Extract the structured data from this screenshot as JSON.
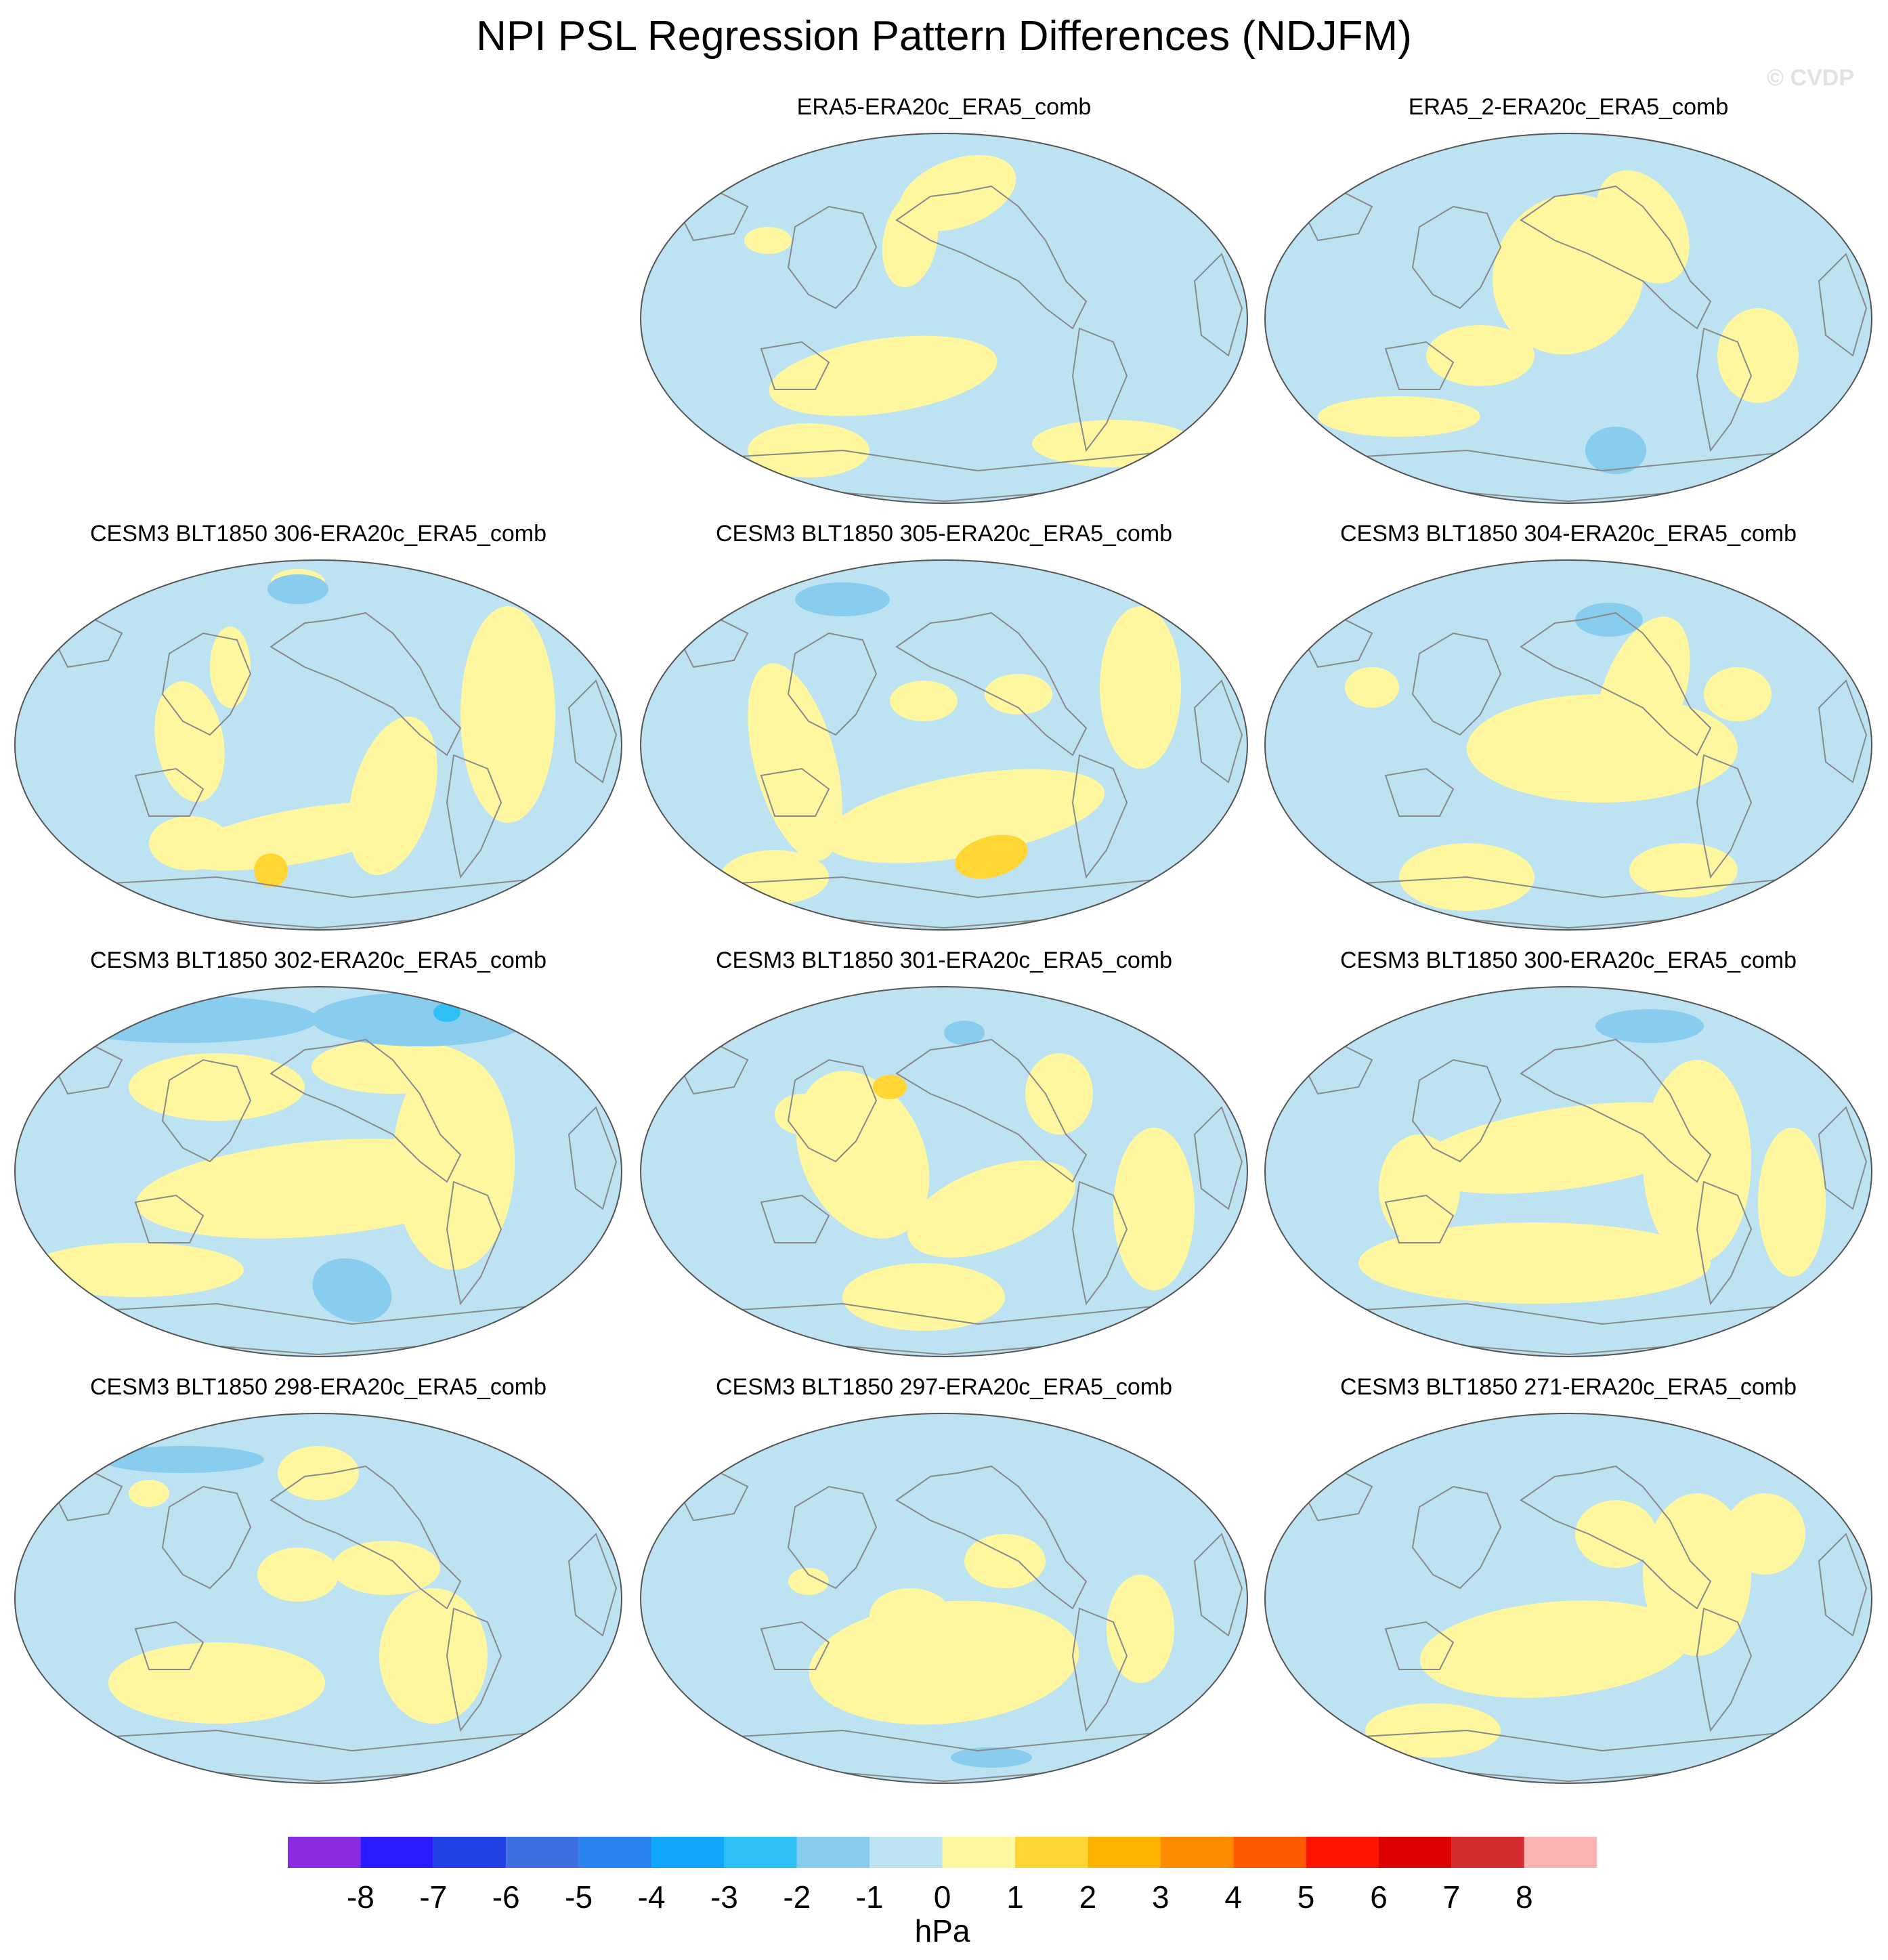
{
  "title": "NPI PSL Regression Pattern Differences (NDJFM)",
  "watermark": "© CVDP",
  "panels": [
    {
      "title": "ERA5-ERA20c_ERA5_comb"
    },
    {
      "title": "ERA5_2-ERA20c_ERA5_comb"
    },
    {
      "title": "CESM3 BLT1850 306-ERA20c_ERA5_comb"
    },
    {
      "title": "CESM3 BLT1850 305-ERA20c_ERA5_comb"
    },
    {
      "title": "CESM3 BLT1850 304-ERA20c_ERA5_comb"
    },
    {
      "title": "CESM3 BLT1850 302-ERA20c_ERA5_comb"
    },
    {
      "title": "CESM3 BLT1850 301-ERA20c_ERA5_comb"
    },
    {
      "title": "CESM3 BLT1850 300-ERA20c_ERA5_comb"
    },
    {
      "title": "CESM3 BLT1850 298-ERA20c_ERA5_comb"
    },
    {
      "title": "CESM3 BLT1850 297-ERA20c_ERA5_comb"
    },
    {
      "title": "CESM3 BLT1850 271-ERA20c_ERA5_comb"
    }
  ],
  "colorbar": {
    "unit": "hPa",
    "labels": [
      "-8",
      "-7",
      "-6",
      "-5",
      "-4",
      "-3",
      "-2",
      "-1",
      "0",
      "1",
      "2",
      "3",
      "4",
      "5",
      "6",
      "7",
      "8"
    ],
    "colors": [
      "#8a2be2",
      "#2a1aff",
      "#2342e6",
      "#3d6ee0",
      "#2a84f0",
      "#12a6ff",
      "#2fc0f5",
      "#88ccee",
      "#bde2f2",
      "#fff6a0",
      "#ffd633",
      "#ffb400",
      "#ff8c00",
      "#ff5a00",
      "#ff1400",
      "#dc0000",
      "#d42c2c",
      "#ffb4b4"
    ]
  },
  "colors": {
    "background": "#ffffff",
    "ocean_fill": "#bde2f2",
    "positive_fill": "#fff6a0",
    "coast": "#8a8a8a"
  }
}
